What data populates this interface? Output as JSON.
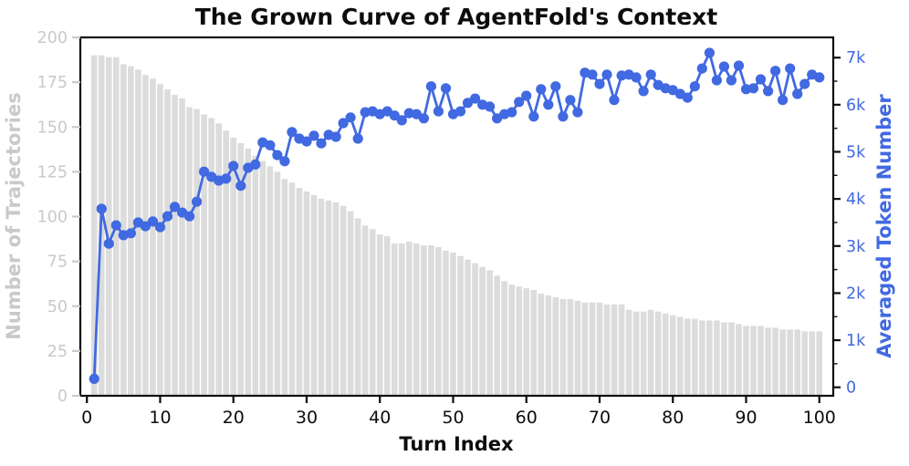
{
  "chart_data": {
    "type": "combo-bar-line",
    "title": "The Grown Curve of AgentFold's Context",
    "xlabel": "Turn Index",
    "legend": "none",
    "grid": false,
    "x": [
      1,
      2,
      3,
      4,
      5,
      6,
      7,
      8,
      9,
      10,
      11,
      12,
      13,
      14,
      15,
      16,
      17,
      18,
      19,
      20,
      21,
      22,
      23,
      24,
      25,
      26,
      27,
      28,
      29,
      30,
      31,
      32,
      33,
      34,
      35,
      36,
      37,
      38,
      39,
      40,
      41,
      42,
      43,
      44,
      45,
      46,
      47,
      48,
      49,
      50,
      51,
      52,
      53,
      54,
      55,
      56,
      57,
      58,
      59,
      60,
      61,
      62,
      63,
      64,
      65,
      66,
      67,
      68,
      69,
      70,
      71,
      72,
      73,
      74,
      75,
      76,
      77,
      78,
      79,
      80,
      81,
      82,
      83,
      84,
      85,
      86,
      87,
      88,
      89,
      90,
      91,
      92,
      93,
      94,
      95,
      96,
      97,
      98,
      99,
      100
    ],
    "series": [
      {
        "name": "Number of Trajectories",
        "type": "bar",
        "axis": "left",
        "color": "#dcdcdc",
        "values": [
          190,
          190,
          189,
          189,
          185,
          184,
          182,
          179,
          177,
          174,
          171,
          168,
          166,
          161,
          160,
          157,
          155,
          152,
          148,
          144,
          141,
          138,
          134,
          131,
          128,
          125,
          121,
          119,
          116,
          114,
          112,
          110,
          109,
          108,
          106,
          103,
          99,
          95,
          93,
          90,
          89,
          85,
          85,
          86,
          85,
          84,
          84,
          83,
          81,
          80,
          78,
          76,
          74,
          72,
          70,
          67,
          64,
          62,
          61,
          60,
          59,
          57,
          56,
          55,
          54,
          54,
          53,
          52,
          52,
          52,
          51,
          51,
          51,
          48,
          47,
          47,
          48,
          47,
          46,
          45,
          44,
          43,
          43,
          42,
          42,
          42,
          41,
          41,
          40,
          39,
          39,
          39,
          38,
          38,
          37,
          37,
          37,
          36,
          36,
          36
        ]
      },
      {
        "name": "Averaged Token Number",
        "type": "line",
        "axis": "right",
        "color": "#4169e1",
        "marker": "circle",
        "values_k": [
          0.18,
          3.79,
          3.05,
          3.44,
          3.23,
          3.27,
          3.5,
          3.42,
          3.52,
          3.4,
          3.63,
          3.83,
          3.71,
          3.63,
          3.94,
          4.58,
          4.47,
          4.39,
          4.43,
          4.7,
          4.28,
          4.66,
          4.73,
          5.2,
          5.14,
          4.93,
          4.8,
          5.42,
          5.28,
          5.22,
          5.34,
          5.18,
          5.36,
          5.32,
          5.61,
          5.73,
          5.28,
          5.84,
          5.86,
          5.8,
          5.86,
          5.77,
          5.67,
          5.82,
          5.8,
          5.71,
          6.39,
          5.86,
          6.35,
          5.8,
          5.86,
          6.04,
          6.13,
          6.0,
          5.96,
          5.71,
          5.8,
          5.84,
          6.06,
          6.19,
          5.75,
          6.33,
          6.0,
          6.39,
          5.75,
          6.1,
          5.84,
          6.68,
          6.64,
          6.44,
          6.64,
          6.1,
          6.62,
          6.64,
          6.58,
          6.29,
          6.64,
          6.42,
          6.35,
          6.31,
          6.23,
          6.15,
          6.39,
          6.77,
          7.1,
          6.52,
          6.81,
          6.52,
          6.83,
          6.33,
          6.35,
          6.54,
          6.29,
          6.72,
          6.1,
          6.77,
          6.23,
          6.44,
          6.64,
          6.58
        ]
      }
    ],
    "x_axis": {
      "ticks": [
        0,
        10,
        20,
        30,
        40,
        50,
        60,
        70,
        80,
        90,
        100
      ],
      "range": [
        -0.9,
        101.9
      ],
      "tick_color": "#0d0d0d",
      "label_color": "#0d0d0d"
    },
    "left_axis": {
      "label": "Number of Trajectories",
      "ticks": [
        0,
        25,
        50,
        75,
        100,
        125,
        150,
        175,
        200
      ],
      "range": [
        0,
        200
      ],
      "tick_color": "#c9c9c9",
      "label_color": "#c9c9c9"
    },
    "right_axis": {
      "label": "Averaged Token Number",
      "tick_values_k": [
        0,
        1,
        2,
        3,
        4,
        5,
        6,
        7
      ],
      "tick_labels": [
        "0",
        "1k",
        "2k",
        "3k",
        "4k",
        "5k",
        "6k",
        "7k"
      ],
      "minor_tick_values_k": [
        0.5,
        1.5,
        2.5,
        3.5,
        4.5,
        5.5,
        6.5
      ],
      "range_k": [
        -0.18,
        7.43
      ],
      "tick_color": "#0d0d0d",
      "label_color": "#4169e1"
    }
  }
}
